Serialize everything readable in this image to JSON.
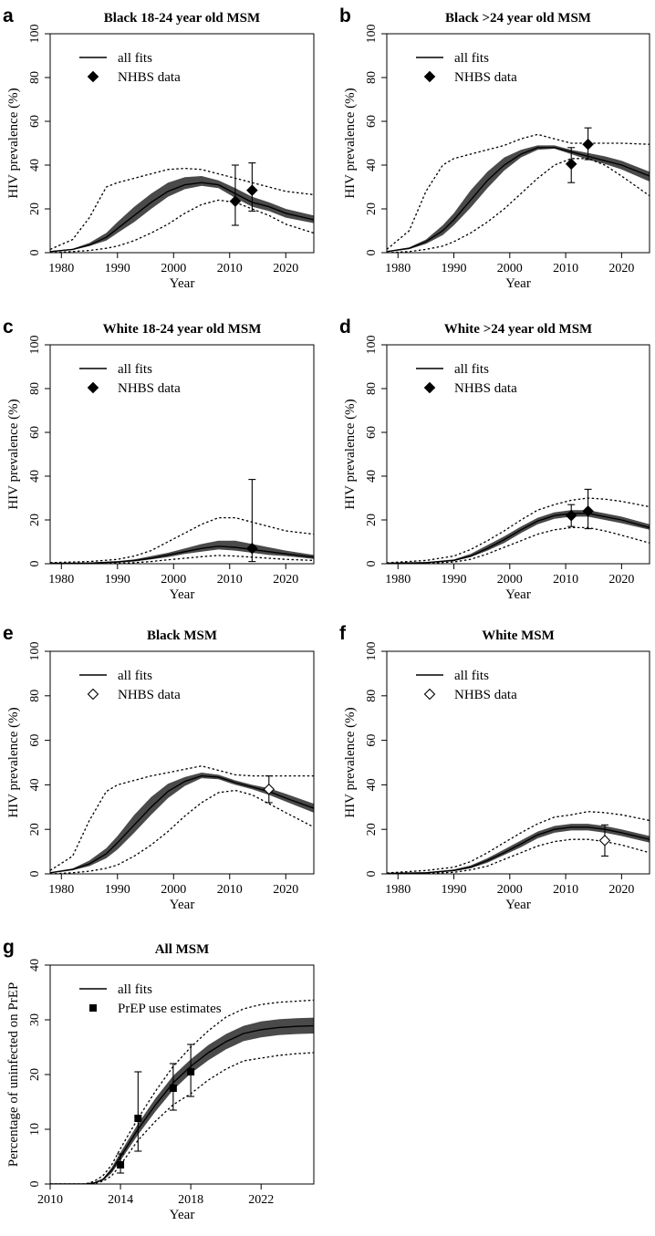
{
  "figure": "HIV prevalence model fits",
  "chart_data": [
    {
      "panel": "a",
      "type": "line",
      "title": "Black 18-24 year old MSM",
      "xlabel": "Year",
      "ylabel": "HIV prevalence (%)",
      "xlim": [
        1978,
        2025
      ],
      "ylim": [
        0,
        100
      ],
      "xticks": [
        1980,
        1990,
        2000,
        2010,
        2020
      ],
      "yticks": [
        0,
        20,
        40,
        60,
        80,
        100
      ],
      "legend": {
        "line_label": "all fits",
        "marker_label": "NHBS data",
        "marker": "diamond-filled"
      },
      "x": [
        1978,
        1982,
        1985,
        1988,
        1990,
        1993,
        1996,
        1999,
        2002,
        2005,
        2008,
        2011,
        2014,
        2017,
        2020,
        2025
      ],
      "median": [
        0.5,
        1.5,
        3.5,
        7,
        11,
        17,
        23,
        28,
        31,
        32,
        31,
        27,
        23,
        21,
        18,
        15
      ],
      "band_low": [
        0.3,
        1.2,
        3,
        5.5,
        9,
        14,
        20,
        25.5,
        29,
        30.5,
        29.5,
        25,
        21,
        19,
        16,
        13.5
      ],
      "band_high": [
        0.7,
        1.8,
        4.5,
        9,
        14,
        21,
        27,
        32,
        34.5,
        35,
        33,
        29.5,
        25.5,
        23,
        20,
        17
      ],
      "lower_bound": [
        0,
        0.5,
        1,
        2,
        3,
        5.5,
        9,
        13,
        18,
        22,
        24,
        23,
        20,
        17,
        13,
        9
      ],
      "upper_bound": [
        1.5,
        6,
        16,
        30,
        32,
        34,
        36,
        38,
        38.5,
        38,
        36,
        34,
        32,
        30,
        28,
        26.5
      ],
      "observed": [
        {
          "x": 2011,
          "y": 23.5,
          "lo": 12.5,
          "hi": 40
        },
        {
          "x": 2014,
          "y": 28.5,
          "lo": 19,
          "hi": 41
        }
      ]
    },
    {
      "panel": "b",
      "type": "line",
      "title": "Black >24 year old MSM",
      "xlabel": "Year",
      "ylabel": "HIV prevalence (%)",
      "xlim": [
        1978,
        2025
      ],
      "ylim": [
        0,
        100
      ],
      "xticks": [
        1980,
        1990,
        2000,
        2010,
        2020
      ],
      "yticks": [
        0,
        20,
        40,
        60,
        80,
        100
      ],
      "legend": {
        "line_label": "all fits",
        "marker_label": "NHBS data",
        "marker": "diamond-filled"
      },
      "x": [
        1978,
        1982,
        1985,
        1988,
        1990,
        1993,
        1996,
        1999,
        2002,
        2005,
        2008,
        2011,
        2014,
        2017,
        2020,
        2025
      ],
      "median": [
        0.5,
        2,
        5,
        10,
        15,
        24,
        33,
        40,
        45,
        48,
        48,
        46,
        44,
        42,
        40,
        35
      ],
      "band_low": [
        0.3,
        1.6,
        4,
        8,
        12.5,
        20.5,
        29.5,
        37.5,
        43.5,
        47,
        47.5,
        45,
        42.5,
        40.5,
        38,
        32.5
      ],
      "band_high": [
        0.7,
        2.4,
        6,
        12.5,
        18,
        28.5,
        37,
        43.5,
        47,
        49,
        49,
        47,
        45.5,
        44,
        42,
        37
      ],
      "lower_bound": [
        0,
        0.5,
        1.5,
        3,
        5,
        9,
        14,
        20,
        27,
        34,
        40,
        43,
        43,
        40,
        35,
        26
      ],
      "upper_bound": [
        1.5,
        10,
        28,
        40,
        43,
        45,
        47,
        49,
        52,
        54,
        52,
        50,
        50,
        50,
        50,
        49.5
      ],
      "observed": [
        {
          "x": 2011,
          "y": 40.5,
          "lo": 32,
          "hi": 48
        },
        {
          "x": 2014,
          "y": 49.5,
          "lo": 42.5,
          "hi": 57
        }
      ]
    },
    {
      "panel": "c",
      "type": "line",
      "title": "White 18-24 year old MSM",
      "xlabel": "Year",
      "ylabel": "HIV prevalence (%)",
      "xlim": [
        1978,
        2025
      ],
      "ylim": [
        0,
        100
      ],
      "xticks": [
        1980,
        1990,
        2000,
        2010,
        2020
      ],
      "yticks": [
        0,
        20,
        40,
        60,
        80,
        100
      ],
      "legend": {
        "line_label": "all fits",
        "marker_label": "NHBS data",
        "marker": "diamond-filled"
      },
      "x": [
        1978,
        1985,
        1990,
        1993,
        1996,
        1999,
        2002,
        2005,
        2008,
        2011,
        2014,
        2017,
        2020,
        2025
      ],
      "median": [
        0.2,
        0.3,
        0.8,
        1.5,
        2.5,
        4,
        5.5,
        7,
        8,
        7.5,
        6.5,
        5.5,
        4.5,
        3
      ],
      "band_low": [
        0.1,
        0.2,
        0.5,
        1,
        2,
        3,
        4.5,
        5.5,
        6.5,
        6,
        5,
        4,
        3.5,
        2.2
      ],
      "band_high": [
        0.3,
        0.5,
        1.2,
        2,
        3.5,
        5,
        7,
        9,
        10.5,
        10.5,
        9,
        7.5,
        6,
        4
      ],
      "lower_bound": [
        0,
        0,
        0.2,
        0.5,
        1,
        1.8,
        2.5,
        3.2,
        3.8,
        3.5,
        3,
        2.5,
        2,
        1.5
      ],
      "upper_bound": [
        0.5,
        1,
        2,
        3.5,
        6,
        10,
        14,
        18,
        21,
        21,
        19,
        17,
        15,
        13.5
      ],
      "observed": [
        {
          "x": 2014,
          "y": 7,
          "lo": 1,
          "hi": 38.5
        }
      ]
    },
    {
      "panel": "d",
      "type": "line",
      "title": "White >24 year old MSM",
      "xlabel": "Year",
      "ylabel": "HIV prevalence (%)",
      "xlim": [
        1978,
        2025
      ],
      "ylim": [
        0,
        100
      ],
      "xticks": [
        1980,
        1990,
        2000,
        2010,
        2020
      ],
      "yticks": [
        0,
        20,
        40,
        60,
        80,
        100
      ],
      "legend": {
        "line_label": "all fits",
        "marker_label": "NHBS data",
        "marker": "diamond-filled"
      },
      "x": [
        1978,
        1985,
        1990,
        1993,
        1996,
        1999,
        2002,
        2005,
        2008,
        2011,
        2014,
        2017,
        2020,
        2025
      ],
      "median": [
        0.2,
        0.5,
        1.5,
        3.5,
        7,
        11,
        15.5,
        19.5,
        22,
        23,
        23,
        21.5,
        20,
        16.5
      ],
      "band_low": [
        0.1,
        0.4,
        1.2,
        3,
        6,
        9.5,
        14,
        18,
        20.5,
        21.5,
        21.5,
        20,
        18.5,
        15.5
      ],
      "band_high": [
        0.3,
        0.7,
        2,
        4.5,
        8.5,
        12.5,
        17,
        21,
        23.5,
        24.5,
        24.5,
        23,
        21.5,
        18
      ],
      "lower_bound": [
        0,
        0.2,
        0.8,
        2,
        4.5,
        7.5,
        10.5,
        13.5,
        15.5,
        16.5,
        16.5,
        15,
        13,
        9.5
      ],
      "upper_bound": [
        0.4,
        1.5,
        3.5,
        6.5,
        10.5,
        15,
        20,
        24.5,
        27,
        29,
        30,
        29.5,
        28.5,
        26
      ],
      "observed": [
        {
          "x": 2011,
          "y": 22,
          "lo": 17,
          "hi": 27
        },
        {
          "x": 2014,
          "y": 24,
          "lo": 16,
          "hi": 34
        }
      ]
    },
    {
      "panel": "e",
      "type": "line",
      "title": "Black MSM",
      "xlabel": "Year",
      "ylabel": "HIV prevalence (%)",
      "xlim": [
        1978,
        2025
      ],
      "ylim": [
        0,
        100
      ],
      "xticks": [
        1980,
        1990,
        2000,
        2010,
        2020
      ],
      "yticks": [
        0,
        20,
        40,
        60,
        80,
        100
      ],
      "legend": {
        "line_label": "all fits",
        "marker_label": "NHBS data",
        "marker": "diamond-open"
      },
      "x": [
        1978,
        1982,
        1985,
        1988,
        1990,
        1993,
        1996,
        1999,
        2002,
        2005,
        2008,
        2011,
        2014,
        2017,
        2020,
        2025
      ],
      "median": [
        0.5,
        2,
        4.5,
        9,
        14,
        22,
        30,
        37,
        41.5,
        44,
        43.5,
        41,
        39,
        37,
        34,
        29.5
      ],
      "band_low": [
        0.3,
        1.6,
        3.5,
        7,
        11,
        18.5,
        26.5,
        34,
        39.5,
        43,
        42.5,
        40,
        38,
        35.5,
        32.5,
        27.5
      ],
      "band_high": [
        0.7,
        2.4,
        6,
        11.5,
        17,
        26.5,
        34.5,
        40.5,
        43.5,
        45.5,
        44.5,
        42,
        40,
        38.5,
        36,
        31.5
      ],
      "lower_bound": [
        0,
        0.5,
        1.2,
        2.5,
        4,
        8,
        13,
        19,
        26,
        32,
        36.5,
        37.5,
        35.5,
        31.5,
        27.5,
        21
      ],
      "upper_bound": [
        1.5,
        8,
        24,
        37,
        40,
        42,
        44,
        45.5,
        47,
        48.5,
        46.5,
        44.5,
        44,
        44,
        44,
        44
      ],
      "observed": [
        {
          "x": 2017,
          "y": 38,
          "lo": 32,
          "hi": 44
        }
      ]
    },
    {
      "panel": "f",
      "type": "line",
      "title": "White MSM",
      "xlabel": "Year",
      "ylabel": "HIV prevalence (%)",
      "xlim": [
        1978,
        2025
      ],
      "ylim": [
        0,
        100
      ],
      "xticks": [
        1980,
        1990,
        2000,
        2010,
        2020
      ],
      "yticks": [
        0,
        20,
        40,
        60,
        80,
        100
      ],
      "legend": {
        "line_label": "all fits",
        "marker_label": "NHBS data",
        "marker": "diamond-open"
      },
      "x": [
        1978,
        1985,
        1990,
        1993,
        1996,
        1999,
        2002,
        2005,
        2008,
        2011,
        2014,
        2017,
        2020,
        2025
      ],
      "median": [
        0.2,
        0.5,
        1.5,
        3,
        6,
        9.5,
        13.5,
        17.5,
        20,
        21,
        21,
        20,
        18.5,
        15.5
      ],
      "band_low": [
        0.1,
        0.4,
        1.2,
        2.5,
        5,
        8.5,
        12,
        16,
        18.5,
        19.5,
        19.5,
        18.5,
        17,
        14
      ],
      "band_high": [
        0.3,
        0.7,
        2,
        3.8,
        7,
        11,
        15,
        19,
        21.5,
        22.5,
        22.5,
        21.5,
        20,
        17
      ],
      "lower_bound": [
        0,
        0.2,
        0.7,
        1.8,
        3.5,
        6.5,
        9.5,
        12.5,
        14.5,
        15.5,
        15.5,
        14.5,
        13,
        9.5
      ],
      "upper_bound": [
        0.4,
        1.5,
        3,
        5.5,
        9.5,
        14,
        18.5,
        22.5,
        25.5,
        26.5,
        28,
        27.5,
        26.5,
        24
      ],
      "observed": [
        {
          "x": 2017,
          "y": 15,
          "lo": 8,
          "hi": 22
        }
      ]
    },
    {
      "panel": "g",
      "type": "line",
      "title": "All MSM",
      "xlabel": "Year",
      "ylabel": "Percentage of uninfected on PrEP",
      "xlim": [
        2010,
        2025
      ],
      "ylim": [
        0,
        40
      ],
      "xticks": [
        2010,
        2014,
        2018,
        2022
      ],
      "yticks": [
        0,
        10,
        20,
        30,
        40
      ],
      "legend": {
        "line_label": "all fits",
        "marker_label": "PrEP use estimates",
        "marker": "square-filled"
      },
      "x": [
        2010,
        2012,
        2012.5,
        2013,
        2013.5,
        2014,
        2015,
        2016,
        2017,
        2018,
        2019,
        2020,
        2021,
        2022,
        2023,
        2024,
        2025
      ],
      "median": [
        0,
        0,
        0.2,
        0.8,
        2.5,
        5,
        10,
        14.5,
        18.5,
        21.5,
        24,
        26,
        27.5,
        28.2,
        28.6,
        28.8,
        28.9
      ],
      "band_low": [
        0,
        0,
        0.1,
        0.6,
        2,
        4.3,
        9,
        13.3,
        17.2,
        20.2,
        22.6,
        24.6,
        26.1,
        26.8,
        27.2,
        27.4,
        27.5
      ],
      "band_high": [
        0,
        0,
        0.3,
        1,
        3,
        5.8,
        11,
        15.7,
        19.8,
        22.8,
        25.4,
        27.4,
        28.9,
        29.7,
        30.1,
        30.3,
        30.4
      ],
      "lower_bound": [
        0,
        0,
        0.1,
        0.5,
        1.5,
        3.5,
        8,
        11.5,
        14.5,
        16.5,
        19,
        21,
        22.5,
        23,
        23.5,
        23.8,
        24
      ],
      "upper_bound": [
        0,
        0,
        0.5,
        1.5,
        3.5,
        6.5,
        12,
        17,
        21.5,
        25,
        28,
        30.5,
        32,
        32.8,
        33.2,
        33.4,
        33.6
      ],
      "observed": [
        {
          "x": 2014,
          "y": 3.5,
          "lo": 2,
          "hi": 5.5
        },
        {
          "x": 2015,
          "y": 12,
          "lo": 6,
          "hi": 20.5
        },
        {
          "x": 2017,
          "y": 17.5,
          "lo": 13.5,
          "hi": 22
        },
        {
          "x": 2018,
          "y": 20.5,
          "lo": 16,
          "hi": 25.5
        }
      ]
    }
  ]
}
